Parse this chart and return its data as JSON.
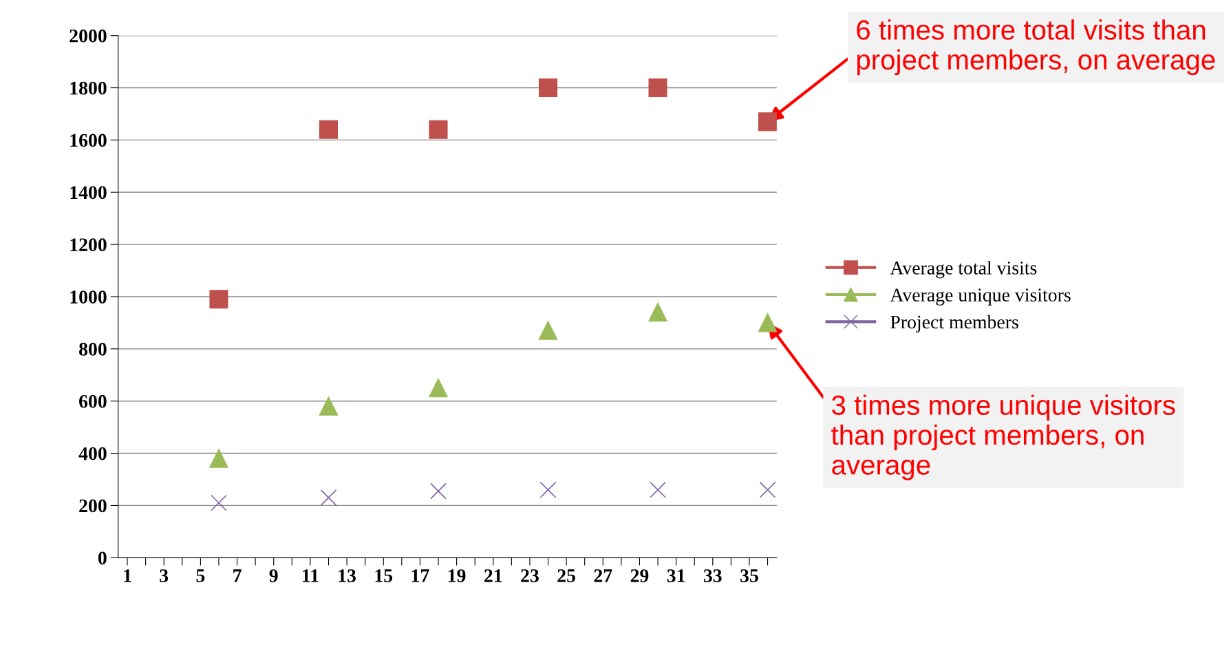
{
  "chart_data": {
    "type": "scatter",
    "x": [
      6,
      12,
      18,
      24,
      30,
      36
    ],
    "series": [
      {
        "name": "Average total visits",
        "color": "#c0504d",
        "marker": "square",
        "values": [
          990,
          1640,
          1640,
          1800,
          1800,
          1670
        ]
      },
      {
        "name": "Average unique visitors",
        "color": "#9bbb59",
        "marker": "triangle",
        "values": [
          380,
          580,
          650,
          870,
          940,
          900
        ]
      },
      {
        "name": "Project members",
        "color": "#8064a2",
        "marker": "cross",
        "values": [
          210,
          230,
          255,
          260,
          260,
          260
        ]
      }
    ],
    "xlim": [
      0.5,
      36.5
    ],
    "xticks": [
      1,
      {
        "value": 2,
        "label": null
      },
      3,
      {
        "value": 4,
        "label": null
      },
      5,
      {
        "value": 6,
        "label": null
      },
      7,
      {
        "value": 8,
        "label": null
      },
      9,
      {
        "value": 10,
        "label": null
      },
      11,
      {
        "value": 12,
        "label": null
      },
      13,
      {
        "value": 14,
        "label": null
      },
      15,
      {
        "value": 16,
        "label": null
      },
      17,
      {
        "value": 18,
        "label": null
      },
      19,
      {
        "value": 20,
        "label": null
      },
      21,
      {
        "value": 22,
        "label": null
      },
      23,
      {
        "value": 24,
        "label": null
      },
      25,
      {
        "value": 26,
        "label": null
      },
      27,
      {
        "value": 28,
        "label": null
      },
      29,
      {
        "value": 30,
        "label": null
      },
      31,
      {
        "value": 32,
        "label": null
      },
      33,
      {
        "value": 34,
        "label": null
      },
      35,
      {
        "value": 36,
        "label": null
      }
    ],
    "ylim": [
      0,
      2000
    ],
    "yticks": [
      0,
      200,
      400,
      600,
      800,
      1000,
      1200,
      1400,
      1600,
      1800,
      2000
    ],
    "grid": "y",
    "legend": "right",
    "annotations": [
      {
        "text": "6 times more total visits than project members, on average",
        "x": 36,
        "y": 1670
      },
      {
        "text": "3 times more unique visitors than project members, on average",
        "x": 36,
        "y": 900
      }
    ]
  }
}
